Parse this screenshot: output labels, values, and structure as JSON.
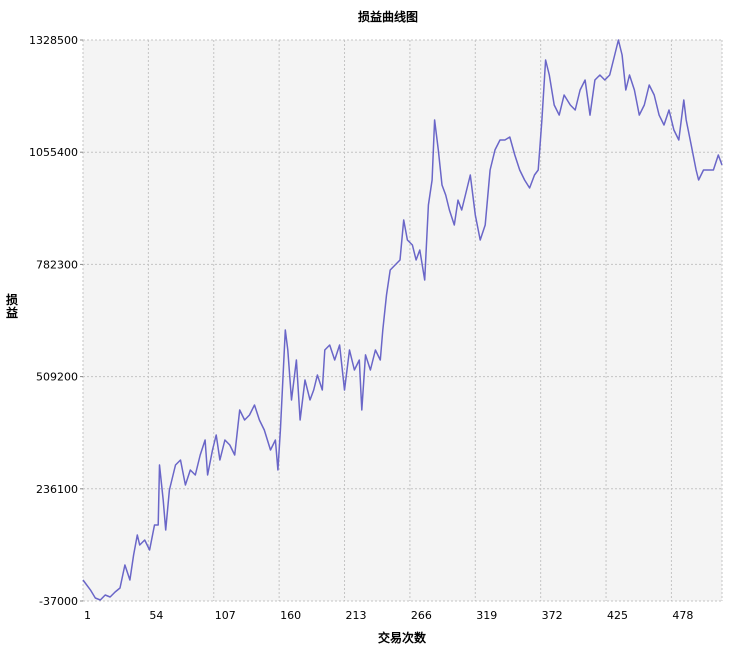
{
  "chart_data": {
    "type": "line",
    "title": "损益曲线图",
    "xlabel": "交易次数",
    "ylabel": "损益",
    "xlim": [
      1,
      519
    ],
    "ylim": [
      -37000,
      1328500
    ],
    "grid": true,
    "x_ticks": [
      1,
      54,
      107,
      160,
      213,
      266,
      319,
      372,
      425,
      478
    ],
    "y_ticks": [
      -37000,
      236100,
      509200,
      782300,
      1055400,
      1328500
    ],
    "series": [
      {
        "name": "损益",
        "color": "#6a66c8",
        "x": [
          1,
          7,
          11,
          15,
          19,
          23,
          27,
          31,
          35,
          39,
          42,
          45,
          47,
          51,
          55,
          59,
          62,
          63,
          66,
          68,
          71,
          76,
          80,
          84,
          88,
          92,
          96,
          100,
          102,
          106,
          109,
          112,
          116,
          120,
          124,
          128,
          132,
          136,
          140,
          144,
          148,
          153,
          157,
          159,
          161,
          165,
          167,
          170,
          174,
          177,
          181,
          185,
          188,
          191,
          195,
          197,
          201,
          205,
          209,
          213,
          217,
          221,
          225,
          227,
          230,
          234,
          238,
          242,
          244,
          247,
          250,
          254,
          258,
          261,
          264,
          268,
          271,
          274,
          278,
          281,
          284,
          286,
          289,
          292,
          295,
          298,
          302,
          305,
          308,
          311,
          315,
          319,
          323,
          327,
          331,
          335,
          339,
          343,
          347,
          351,
          355,
          359,
          363,
          367,
          370,
          373,
          376,
          379,
          383,
          387,
          391,
          396,
          400,
          404,
          408,
          412,
          416,
          420,
          424,
          428,
          432,
          435,
          438,
          441,
          444,
          448,
          452,
          456,
          460,
          464,
          468,
          472,
          476,
          480,
          484,
          488,
          490,
          494,
          498,
          500,
          504,
          508,
          512,
          516,
          519
        ],
        "values": [
          14000,
          -10000,
          -29700,
          -34500,
          -22400,
          -27200,
          -15100,
          -5300,
          50700,
          14000,
          75000,
          123700,
          99300,
          111500,
          87200,
          148000,
          148000,
          294000,
          208900,
          135800,
          233200,
          294000,
          306200,
          245400,
          281900,
          269700,
          318400,
          354900,
          269700,
          330600,
          367100,
          306200,
          354900,
          342800,
          318400,
          427900,
          403600,
          415800,
          440100,
          403600,
          379300,
          330600,
          354900,
          281900,
          379300,
          622600,
          574000,
          452300,
          549600,
          403600,
          501000,
          452300,
          476600,
          513100,
          476600,
          574000,
          586100,
          549600,
          586100,
          476600,
          574000,
          525300,
          549600,
          427900,
          562000,
          525300,
          574000,
          549600,
          622600,
          707800,
          768700,
          780900,
          793000,
          890400,
          841700,
          829500,
          793000,
          817400,
          744400,
          926900,
          987700,
          1133800,
          1061000,
          975600,
          951300,
          914700,
          878200,
          938900,
          914700,
          951300,
          999900,
          902600,
          841700,
          878200,
          1012100,
          1061000,
          1085100,
          1085100,
          1092400,
          1048600,
          1012100,
          987700,
          968300,
          999900,
          1012100,
          1133800,
          1279800,
          1243300,
          1170300,
          1145800,
          1194600,
          1170300,
          1158100,
          1206800,
          1231100,
          1145800,
          1231100,
          1243300,
          1231100,
          1243300,
          1292000,
          1328500,
          1292000,
          1206800,
          1243300,
          1206800,
          1145800,
          1170300,
          1219000,
          1194600,
          1145800,
          1121600,
          1158100,
          1109400,
          1085100,
          1182400,
          1133800,
          1073000,
          1012100,
          987700,
          1012100,
          1012100,
          1012100,
          1048600,
          1024300
        ]
      }
    ]
  }
}
